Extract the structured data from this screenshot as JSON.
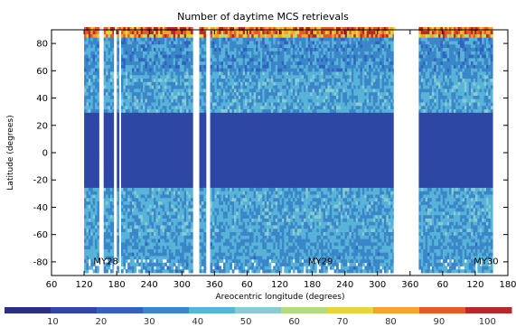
{
  "chart_data": {
    "type": "heatmap",
    "title": "Number of daytime MCS retrievals",
    "xlabel": "Areocentric longitude (degrees)",
    "ylabel": "Latitude (degrees)",
    "x_ticks": [
      "60",
      "120",
      "180",
      "240",
      "300",
      "360",
      "60",
      "120",
      "180",
      "240",
      "300",
      "360",
      "60",
      "120",
      "180"
    ],
    "x_tick_positions": [
      60,
      120,
      180,
      240,
      300,
      360,
      420,
      480,
      540,
      600,
      660,
      720,
      780,
      840,
      900
    ],
    "y_ticks": [
      "80",
      "60",
      "40",
      "20",
      "0",
      "-20",
      "-40",
      "-60",
      "-80"
    ],
    "y_tick_values": [
      80,
      60,
      40,
      20,
      0,
      -20,
      -40,
      -60,
      -80
    ],
    "xlim": [
      60,
      900
    ],
    "ylim": [
      -90,
      90
    ],
    "colorbar": {
      "ticks": [
        "10",
        "20",
        "30",
        "40",
        "50",
        "60",
        "70",
        "80",
        "90",
        "100"
      ],
      "range": [
        0,
        105
      ],
      "colors": [
        "#2a2f86",
        "#2f47a4",
        "#2f63be",
        "#3a86c9",
        "#58b3d8",
        "#86ccd2",
        "#b3d983",
        "#e6d439",
        "#f2a529",
        "#e8582a",
        "#b5292b"
      ]
    },
    "mars_years": [
      {
        "label": "MY28",
        "x_start": 117,
        "x_end": 320
      },
      {
        "label": "MY29",
        "x_start": 330,
        "x_end": 690
      },
      {
        "label": "MY30",
        "x_start": 736,
        "x_end": 870
      }
    ],
    "annotations": [
      {
        "text": "MY28",
        "x": 160,
        "y": -79
      },
      {
        "text": "MY29",
        "x": 555,
        "y": -79
      },
      {
        "text": "MY30",
        "x": 860,
        "y": -79
      }
    ],
    "data_gaps": [
      {
        "x_start": 148,
        "x_end": 153
      },
      {
        "x_start": 175,
        "x_end": 180
      },
      {
        "x_start": 185,
        "x_end": 188
      },
      {
        "x_start": 322,
        "x_end": 330
      },
      {
        "x_start": 345,
        "x_end": 349
      },
      {
        "x_start": 690,
        "x_end": 735
      }
    ],
    "typical_counts": [
      {
        "latitude_band": "85 to 90",
        "value": 82
      },
      {
        "latitude_band": "60 to 85",
        "value": 35
      },
      {
        "latitude_band": "30 to 60",
        "value": 40
      },
      {
        "latitude_band": "-25 to 30",
        "value": 15
      },
      {
        "latitude_band": "-60 to -25",
        "value": 40
      },
      {
        "latitude_band": "-90 to -60",
        "value": 38
      }
    ]
  }
}
